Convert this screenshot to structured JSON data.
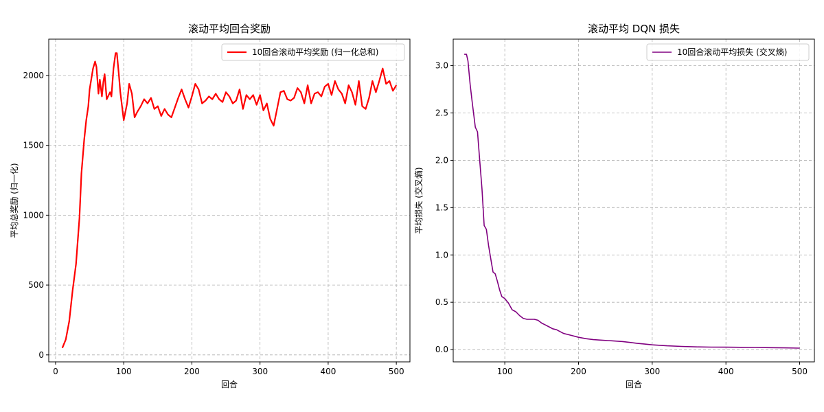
{
  "chart_data": [
    {
      "type": "line",
      "title": "滚动平均回合奖励",
      "xlabel": "回合",
      "ylabel": "平均总奖励 (归一化)",
      "xlim": [
        -10,
        520
      ],
      "ylim": [
        -50,
        2260
      ],
      "xticks": [
        0,
        100,
        200,
        300,
        400,
        500
      ],
      "yticks": [
        0,
        500,
        1000,
        1500,
        2000
      ],
      "grid": true,
      "legend_position": "top-right",
      "series": [
        {
          "name": "10回合滚动平均奖励 (归一化总和)",
          "color": "#ff0000",
          "x": [
            10,
            15,
            20,
            25,
            30,
            35,
            38,
            40,
            42,
            45,
            48,
            50,
            55,
            58,
            60,
            63,
            65,
            68,
            70,
            72,
            75,
            78,
            80,
            82,
            85,
            88,
            90,
            93,
            95,
            98,
            100,
            105,
            108,
            112,
            116,
            120,
            125,
            130,
            135,
            140,
            145,
            150,
            155,
            160,
            165,
            170,
            175,
            180,
            185,
            190,
            195,
            200,
            205,
            210,
            215,
            220,
            225,
            230,
            235,
            240,
            245,
            250,
            255,
            260,
            265,
            270,
            275,
            280,
            285,
            290,
            295,
            300,
            305,
            310,
            315,
            320,
            325,
            330,
            335,
            340,
            345,
            350,
            355,
            360,
            365,
            370,
            375,
            380,
            385,
            390,
            395,
            400,
            405,
            410,
            415,
            420,
            425,
            430,
            435,
            440,
            445,
            450,
            455,
            460,
            465,
            470,
            475,
            480,
            485,
            490,
            495,
            500
          ],
          "y": [
            50,
            110,
            240,
            460,
            650,
            980,
            1300,
            1420,
            1540,
            1680,
            1780,
            1900,
            2050,
            2100,
            2060,
            1870,
            1970,
            1850,
            1950,
            2010,
            1830,
            1860,
            1880,
            1850,
            2050,
            2160,
            2160,
            2000,
            1880,
            1760,
            1680,
            1800,
            1940,
            1870,
            1700,
            1740,
            1780,
            1830,
            1800,
            1840,
            1760,
            1780,
            1710,
            1760,
            1720,
            1700,
            1770,
            1840,
            1900,
            1830,
            1770,
            1850,
            1940,
            1900,
            1800,
            1820,
            1850,
            1830,
            1870,
            1830,
            1810,
            1880,
            1850,
            1800,
            1820,
            1900,
            1760,
            1860,
            1830,
            1860,
            1790,
            1860,
            1750,
            1800,
            1690,
            1640,
            1760,
            1880,
            1890,
            1830,
            1820,
            1840,
            1910,
            1880,
            1800,
            1930,
            1800,
            1870,
            1880,
            1850,
            1920,
            1940,
            1860,
            1960,
            1900,
            1870,
            1800,
            1930,
            1880,
            1790,
            1960,
            1780,
            1760,
            1840,
            1960,
            1880,
            1960,
            2050,
            1940,
            1960,
            1890,
            1930
          ]
        }
      ]
    },
    {
      "type": "line",
      "title": "滚动平均 DQN 损失",
      "xlabel": "回合",
      "ylabel": "平均损失 (交叉熵)",
      "xlim": [
        30,
        520
      ],
      "ylim": [
        -0.13,
        3.28
      ],
      "xticks": [
        100,
        200,
        300,
        400,
        500
      ],
      "yticks": [
        0.0,
        0.5,
        1.0,
        1.5,
        2.0,
        2.5,
        3.0
      ],
      "grid": true,
      "legend_position": "top-right",
      "series": [
        {
          "name": "10回合滚动平均损失 (交叉熵)",
          "color": "#800080",
          "x": [
            45,
            48,
            50,
            53,
            56,
            60,
            63,
            66,
            69,
            72,
            75,
            78,
            81,
            84,
            87,
            90,
            93,
            96,
            100,
            105,
            110,
            115,
            120,
            125,
            130,
            135,
            140,
            145,
            150,
            155,
            160,
            165,
            170,
            175,
            180,
            185,
            190,
            200,
            210,
            220,
            230,
            240,
            250,
            260,
            270,
            280,
            290,
            300,
            320,
            340,
            360,
            380,
            400,
            420,
            440,
            460,
            480,
            500
          ],
          "y": [
            3.12,
            3.12,
            3.05,
            2.8,
            2.6,
            2.35,
            2.3,
            2.0,
            1.7,
            1.31,
            1.27,
            1.1,
            0.96,
            0.82,
            0.8,
            0.72,
            0.63,
            0.56,
            0.54,
            0.49,
            0.42,
            0.4,
            0.36,
            0.33,
            0.32,
            0.32,
            0.32,
            0.31,
            0.28,
            0.26,
            0.24,
            0.22,
            0.21,
            0.19,
            0.17,
            0.16,
            0.15,
            0.13,
            0.115,
            0.105,
            0.1,
            0.095,
            0.09,
            0.085,
            0.075,
            0.065,
            0.058,
            0.05,
            0.04,
            0.033,
            0.028,
            0.026,
            0.025,
            0.024,
            0.022,
            0.02,
            0.018,
            0.015
          ]
        }
      ]
    }
  ]
}
